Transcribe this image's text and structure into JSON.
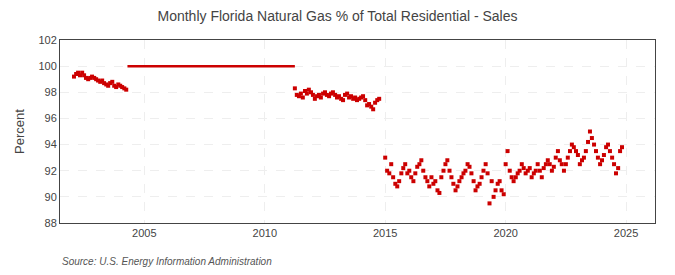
{
  "chart_data": {
    "type": "scatter",
    "title": "Monthly Florida Natural Gas % of Total Residential - Sales",
    "ylabel": "Percent",
    "source": "Source: U.S. Energy Information Administration",
    "xlim": [
      2001.5,
      2026.2
    ],
    "xticks": [
      2005,
      2010,
      2015,
      2020,
      2025
    ],
    "ylim": [
      88,
      102
    ],
    "yticks": [
      88,
      90,
      92,
      94,
      96,
      98,
      100,
      102
    ],
    "grid": true,
    "series": [
      {
        "type": "scatter",
        "marker": "square",
        "color": "#cc0000",
        "x": [
          2002.08,
          2002.17,
          2002.25,
          2002.33,
          2002.42,
          2002.5,
          2002.58,
          2002.67,
          2002.75,
          2002.83,
          2002.92,
          2003.0,
          2003.08,
          2003.17,
          2003.25,
          2003.33,
          2003.42,
          2003.5,
          2003.58,
          2003.67,
          2003.75,
          2003.83,
          2003.92,
          2004.0,
          2004.08,
          2004.17,
          2004.25,
          2011.25,
          2011.33,
          2011.42,
          2011.5,
          2011.58,
          2011.67,
          2011.75,
          2011.83,
          2011.92,
          2012.0,
          2012.08,
          2012.17,
          2012.25,
          2012.33,
          2012.42,
          2012.5,
          2012.58,
          2012.67,
          2012.75,
          2012.83,
          2012.92,
          2013.0,
          2013.08,
          2013.17,
          2013.25,
          2013.33,
          2013.42,
          2013.5,
          2013.58,
          2013.67,
          2013.75,
          2013.83,
          2013.92,
          2014.0,
          2014.08,
          2014.17,
          2014.25,
          2014.33,
          2014.42,
          2014.5,
          2014.58,
          2014.67,
          2014.75,
          2015.0,
          2015.08,
          2015.17,
          2015.25,
          2015.33,
          2015.42,
          2015.5,
          2015.58,
          2015.67,
          2015.75,
          2015.83,
          2015.92,
          2016.0,
          2016.08,
          2016.17,
          2016.25,
          2016.33,
          2016.42,
          2016.5,
          2016.58,
          2016.67,
          2016.75,
          2016.83,
          2016.92,
          2017.0,
          2017.08,
          2017.17,
          2017.25,
          2017.33,
          2017.42,
          2017.5,
          2017.58,
          2017.67,
          2017.75,
          2017.83,
          2017.92,
          2018.0,
          2018.08,
          2018.17,
          2018.25,
          2018.33,
          2018.42,
          2018.5,
          2018.58,
          2018.67,
          2018.75,
          2018.83,
          2018.92,
          2019.0,
          2019.08,
          2019.17,
          2019.25,
          2019.33,
          2019.42,
          2019.5,
          2019.58,
          2019.67,
          2019.75,
          2019.83,
          2019.92,
          2020.0,
          2020.08,
          2020.17,
          2020.25,
          2020.33,
          2020.42,
          2020.5,
          2020.58,
          2020.67,
          2020.75,
          2020.83,
          2020.92,
          2021.0,
          2021.08,
          2021.17,
          2021.25,
          2021.33,
          2021.42,
          2021.5,
          2021.58,
          2021.67,
          2021.75,
          2021.83,
          2021.92,
          2022.0,
          2022.08,
          2022.17,
          2022.25,
          2022.33,
          2022.42,
          2022.5,
          2022.58,
          2022.67,
          2022.75,
          2022.83,
          2022.92,
          2023.0,
          2023.08,
          2023.17,
          2023.25,
          2023.33,
          2023.42,
          2023.5,
          2023.58,
          2023.67,
          2023.75,
          2023.83,
          2023.92,
          2024.0,
          2024.08,
          2024.17,
          2024.25,
          2024.33,
          2024.42,
          2024.5,
          2024.58,
          2024.67,
          2024.75,
          2024.83
        ],
        "values": [
          99.2,
          99.4,
          99.5,
          99.3,
          99.5,
          99.3,
          99.1,
          99.0,
          99.1,
          99.2,
          99.1,
          99.0,
          98.9,
          98.8,
          98.9,
          98.7,
          98.6,
          98.5,
          98.7,
          98.8,
          98.5,
          98.4,
          98.6,
          98.5,
          98.4,
          98.3,
          98.2,
          98.3,
          97.8,
          97.7,
          97.9,
          97.6,
          98.1,
          97.9,
          98.2,
          98.0,
          97.8,
          97.5,
          97.7,
          97.8,
          97.6,
          97.9,
          98.0,
          97.8,
          97.7,
          97.9,
          98.0,
          97.8,
          97.6,
          97.7,
          97.5,
          97.4,
          97.8,
          97.9,
          97.6,
          97.7,
          97.5,
          97.6,
          97.4,
          97.5,
          97.6,
          97.7,
          97.4,
          97.0,
          97.1,
          96.9,
          96.7,
          97.2,
          97.4,
          97.5,
          93.0,
          92.0,
          91.8,
          92.5,
          91.5,
          91.0,
          90.8,
          91.2,
          91.8,
          92.2,
          92.5,
          91.8,
          92.0,
          91.5,
          91.2,
          91.8,
          92.3,
          92.5,
          92.8,
          92.0,
          91.5,
          91.2,
          90.8,
          91.5,
          91.0,
          91.2,
          90.5,
          90.3,
          91.5,
          92.0,
          92.5,
          92.8,
          92.0,
          91.5,
          91.0,
          90.5,
          90.8,
          91.2,
          91.5,
          91.8,
          92.0,
          92.5,
          92.3,
          91.8,
          91.2,
          90.5,
          90.8,
          91.0,
          91.5,
          92.0,
          92.5,
          91.8,
          89.5,
          91.2,
          90.0,
          90.5,
          91.0,
          91.2,
          90.5,
          90.2,
          92.5,
          93.5,
          92.0,
          91.5,
          91.2,
          91.5,
          91.8,
          92.0,
          92.5,
          92.2,
          91.8,
          92.0,
          92.2,
          91.5,
          91.8,
          92.0,
          92.5,
          92.0,
          91.5,
          92.2,
          92.5,
          92.8,
          92.5,
          92.0,
          92.3,
          93.0,
          93.5,
          92.8,
          92.5,
          92.0,
          92.5,
          93.0,
          93.5,
          94.0,
          93.8,
          93.5,
          93.2,
          92.5,
          92.8,
          93.0,
          93.5,
          94.2,
          95.0,
          94.5,
          94.0,
          93.5,
          93.0,
          92.5,
          92.8,
          93.2,
          93.8,
          94.0,
          93.5,
          93.0,
          92.5,
          91.8,
          92.2,
          93.5,
          93.8
        ]
      },
      {
        "type": "line",
        "line_style": "solid",
        "color": "#cc0000",
        "x": [
          2004.3,
          2011.25
        ],
        "values": [
          100.0,
          100.0
        ]
      }
    ]
  }
}
